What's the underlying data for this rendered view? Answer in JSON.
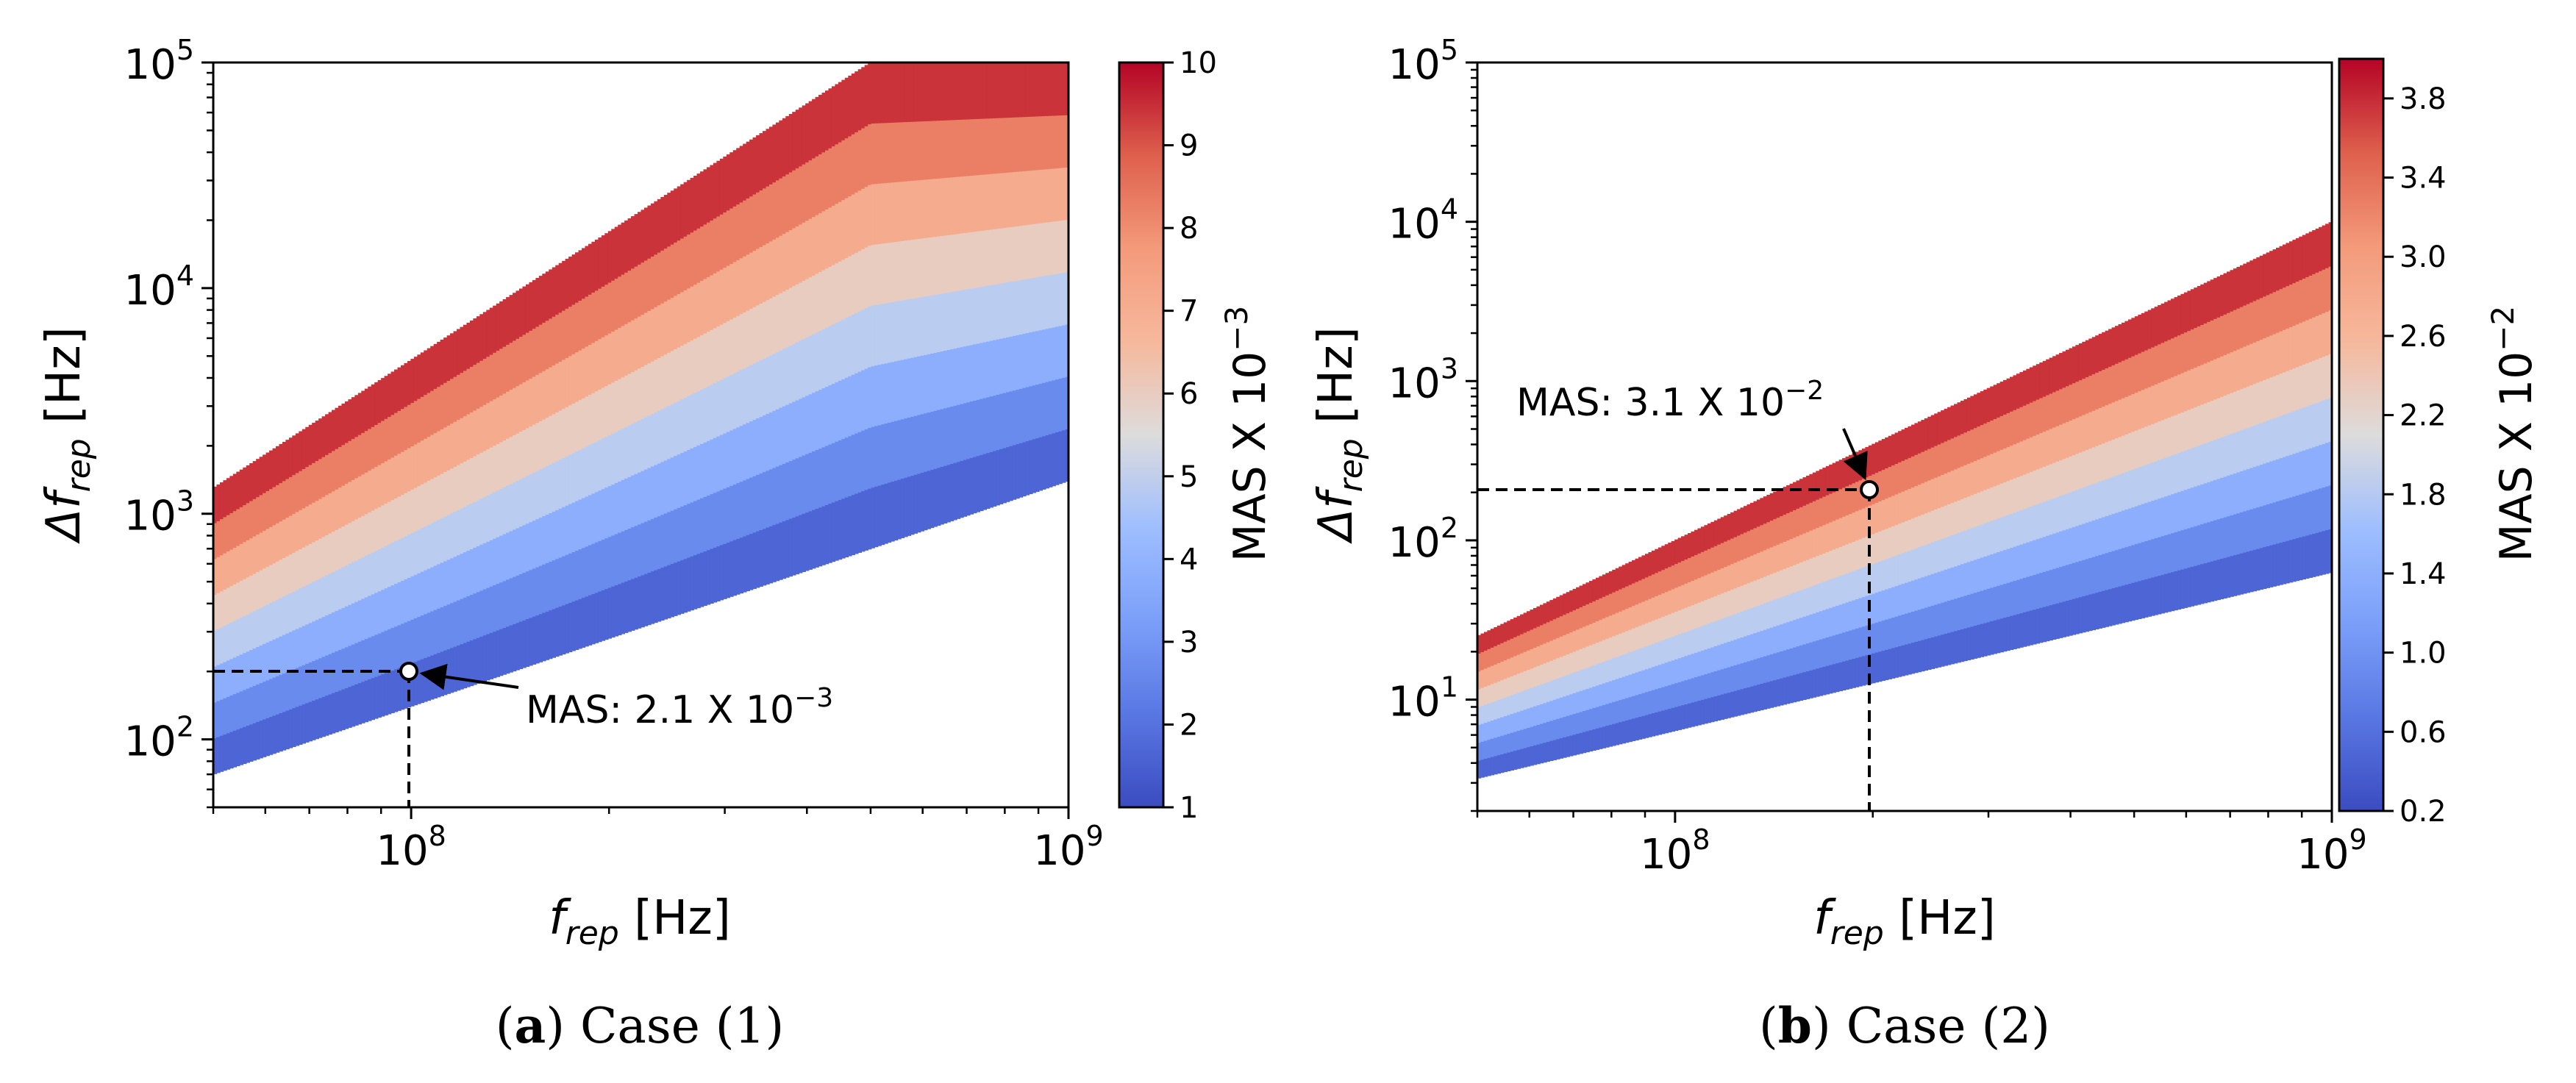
{
  "figure": {
    "panels": [
      {
        "letter": "a",
        "caption": "Case (1)",
        "xlabel_main": "f",
        "xlabel_sub": "rep",
        "xlabel_unit": "[Hz]",
        "ylabel_prefix": "Δf",
        "ylabel_sub": "rep",
        "ylabel_unit": "[Hz]",
        "colorbar_label": "MAS X 10",
        "colorbar_exp": "−3",
        "colorbar_ticks": [
          "1",
          "2",
          "3",
          "4",
          "5",
          "6",
          "7",
          "8",
          "9",
          "10"
        ],
        "annotation_text": "MAS: 2.1 X 10",
        "annotation_exp": "−3"
      },
      {
        "letter": "b",
        "caption": "Case (2)",
        "xlabel_main": "f",
        "xlabel_sub": "rep",
        "xlabel_unit": "[Hz]",
        "ylabel_prefix": "Δf",
        "ylabel_sub": "rep",
        "ylabel_unit": "[Hz]",
        "colorbar_label": "MAS X 10",
        "colorbar_exp": "−2",
        "colorbar_ticks": [
          "0.2",
          "0.6",
          "1.0",
          "1.4",
          "1.8",
          "2.2",
          "2.6",
          "3.0",
          "3.4",
          "3.8"
        ],
        "annotation_text": "MAS: 3.1 X 10",
        "annotation_exp": "−2"
      }
    ]
  },
  "chart_data": [
    {
      "type": "heatmap",
      "title": "(a) Case (1)",
      "xlabel": "f_rep [Hz]",
      "ylabel": "Δf_rep [Hz]",
      "xscale": "log",
      "yscale": "log",
      "xlim": [
        50000000.0,
        1000000000.0
      ],
      "ylim": [
        50,
        100000
      ],
      "x_ticks": [
        {
          "value": 100000000.0,
          "base": "10",
          "exp": "8"
        },
        {
          "value": 1000000000.0,
          "base": "10",
          "exp": "9"
        }
      ],
      "y_ticks": [
        {
          "value": 100,
          "base": "10",
          "exp": "2"
        },
        {
          "value": 1000,
          "base": "10",
          "exp": "3"
        },
        {
          "value": 10000,
          "base": "10",
          "exp": "4"
        },
        {
          "value": 100000,
          "base": "10",
          "exp": "5"
        }
      ],
      "colormap": "coolwarm",
      "colorbar": {
        "label": "MAS X 10^-3",
        "min": 1,
        "max": 10
      },
      "region": {
        "lower_boundary": [
          [
            50000000.0,
            70
          ],
          [
            1000000000.0,
            1400
          ]
        ],
        "upper_boundary": [
          [
            50000000.0,
            1300
          ],
          [
            500000000.0,
            100000
          ],
          [
            1000000000.0,
            100000
          ]
        ]
      },
      "annotation": {
        "label": "MAS: 2.1 X 10^-3",
        "point": [
          100000000.0,
          200
        ],
        "text_at": [
          150000000.0,
          130
        ]
      }
    },
    {
      "type": "heatmap",
      "title": "(b) Case (2)",
      "xlabel": "f_rep [Hz]",
      "ylabel": "Δf_rep [Hz]",
      "xscale": "log",
      "yscale": "log",
      "xlim": [
        50000000.0,
        1000000000.0
      ],
      "ylim": [
        2,
        100000
      ],
      "x_ticks": [
        {
          "value": 100000000.0,
          "base": "10",
          "exp": "8"
        },
        {
          "value": 1000000000.0,
          "base": "10",
          "exp": "9"
        }
      ],
      "y_ticks": [
        {
          "value": 10,
          "base": "10",
          "exp": "1"
        },
        {
          "value": 100,
          "base": "10",
          "exp": "2"
        },
        {
          "value": 1000,
          "base": "10",
          "exp": "3"
        },
        {
          "value": 10000,
          "base": "10",
          "exp": "4"
        },
        {
          "value": 100000,
          "base": "10",
          "exp": "5"
        }
      ],
      "colormap": "coolwarm",
      "colorbar": {
        "label": "MAS X 10^-2",
        "min": 0.2,
        "max": 4.0
      },
      "region": {
        "lower_boundary": [
          [
            50000000.0,
            3.2
          ],
          [
            1000000000.0,
            63
          ]
        ],
        "upper_boundary": [
          [
            50000000.0,
            25
          ],
          [
            1000000000.0,
            10000
          ]
        ]
      },
      "annotation": {
        "label": "MAS: 3.1 X 10^-2",
        "point": [
          200000000.0,
          200
        ],
        "text_at": [
          100000000.0,
          700
        ]
      }
    }
  ]
}
